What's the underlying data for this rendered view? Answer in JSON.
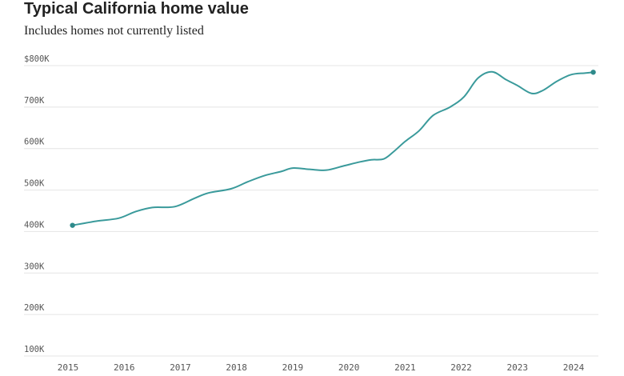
{
  "chart_data": {
    "type": "line",
    "title": "Typical California home value",
    "subtitle": "Includes homes not currently listed",
    "xlabel": "",
    "ylabel": "",
    "y_tick_labels": [
      "100K",
      "200K",
      "300K",
      "400K",
      "500K",
      "600K",
      "700K",
      "$800K"
    ],
    "y_tick_values": [
      100000,
      200000,
      300000,
      400000,
      500000,
      600000,
      700000,
      800000
    ],
    "x_tick_labels": [
      "2015",
      "2016",
      "2017",
      "2018",
      "2019",
      "2020",
      "2021",
      "2022",
      "2023",
      "2024"
    ],
    "x_tick_values": [
      2015,
      2016,
      2017,
      2018,
      2019,
      2020,
      2021,
      2022,
      2023,
      2024
    ],
    "ylim": [
      100000,
      800000
    ],
    "xlim": [
      2015,
      2024
    ],
    "grid": true,
    "line_color": "#3a9a9b",
    "series": [
      {
        "name": "",
        "points": [
          [
            2015.08,
            415000
          ],
          [
            2015.5,
            425000
          ],
          [
            2015.9,
            432000
          ],
          [
            2016.2,
            448000
          ],
          [
            2016.5,
            458000
          ],
          [
            2016.9,
            460000
          ],
          [
            2017.25,
            480000
          ],
          [
            2017.5,
            493000
          ],
          [
            2017.9,
            503000
          ],
          [
            2018.2,
            520000
          ],
          [
            2018.5,
            535000
          ],
          [
            2018.8,
            545000
          ],
          [
            2019.0,
            553000
          ],
          [
            2019.3,
            550000
          ],
          [
            2019.6,
            548000
          ],
          [
            2019.9,
            558000
          ],
          [
            2020.2,
            568000
          ],
          [
            2020.4,
            573000
          ],
          [
            2020.62,
            575000
          ],
          [
            2020.8,
            593000
          ],
          [
            2021.0,
            617000
          ],
          [
            2021.25,
            643000
          ],
          [
            2021.5,
            680000
          ],
          [
            2021.8,
            700000
          ],
          [
            2022.05,
            725000
          ],
          [
            2022.3,
            770000
          ],
          [
            2022.55,
            785000
          ],
          [
            2022.8,
            766000
          ],
          [
            2023.0,
            752000
          ],
          [
            2023.25,
            733000
          ],
          [
            2023.45,
            740000
          ],
          [
            2023.7,
            762000
          ],
          [
            2023.95,
            778000
          ],
          [
            2024.2,
            782000
          ],
          [
            2024.35,
            784000
          ]
        ]
      }
    ]
  }
}
